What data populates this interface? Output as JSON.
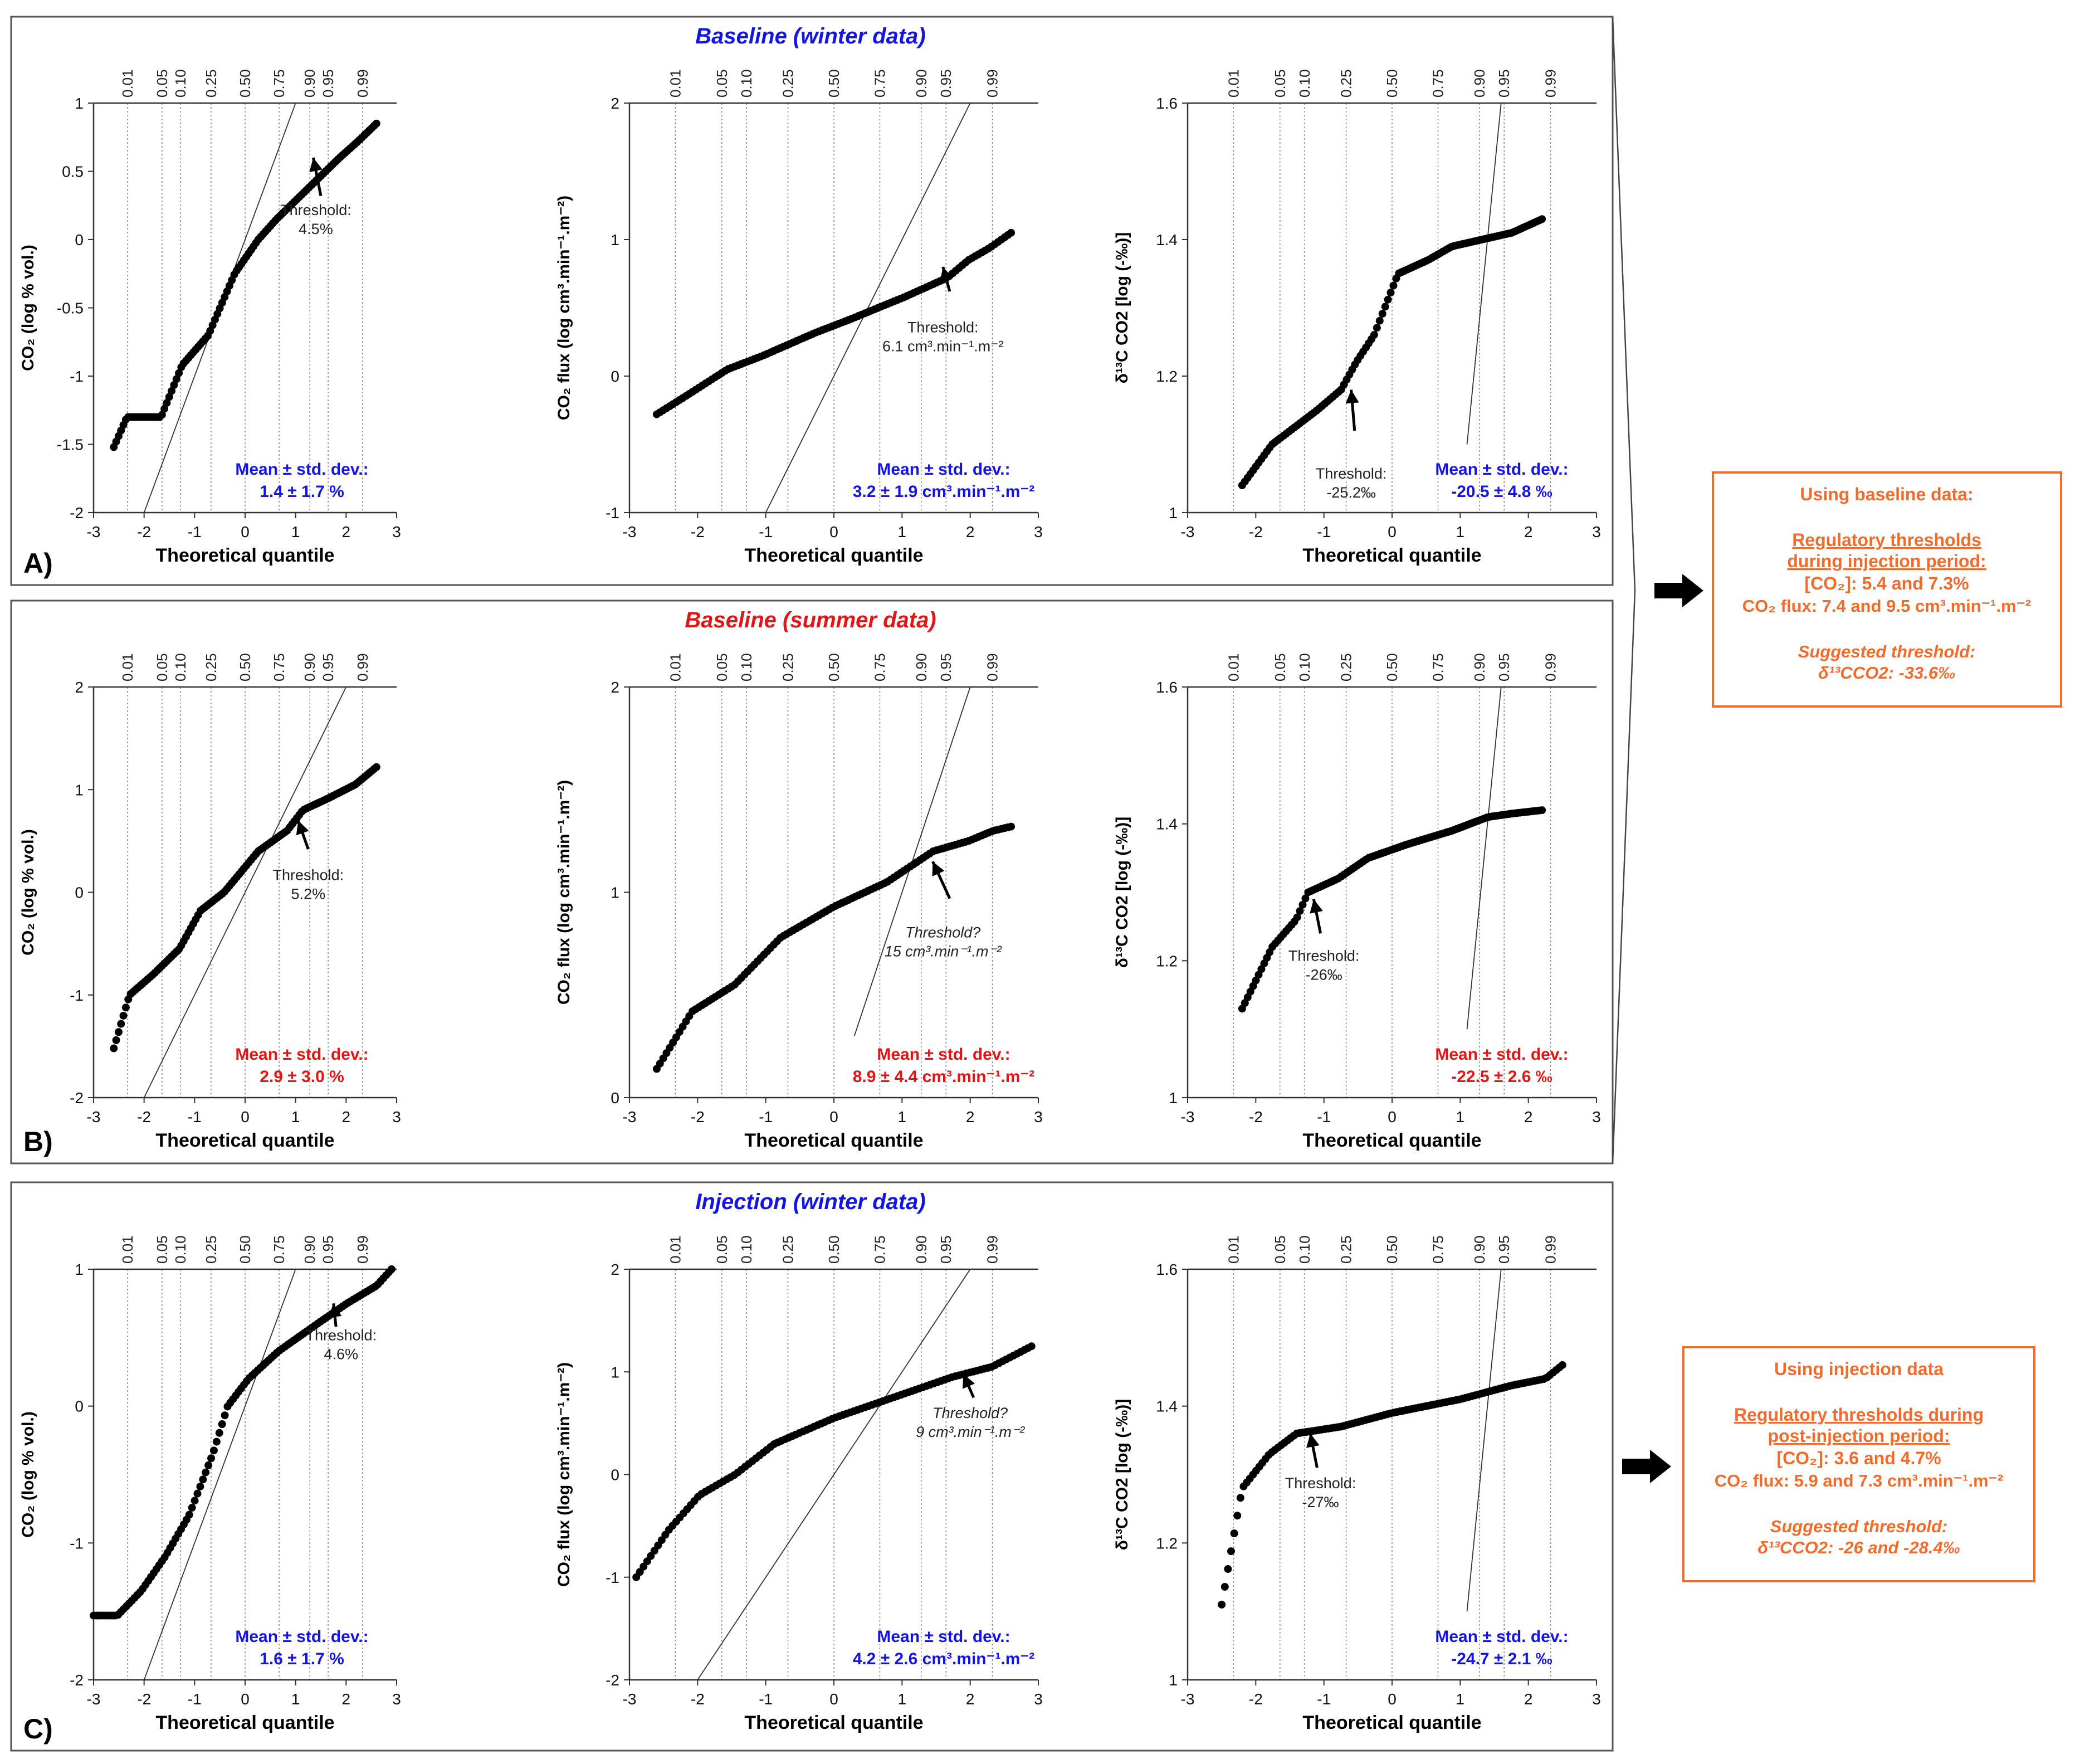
{
  "figure": {
    "x_label": "Theoretical quantile",
    "prob_ticks": [
      "0.01",
      "0.05",
      "0.10",
      "0.25",
      "0.50",
      "0.75",
      "0.90",
      "0.95",
      "0.99"
    ],
    "prob_quantiles": [
      -2.326,
      -1.645,
      -1.282,
      -0.674,
      0,
      0.674,
      1.282,
      1.645,
      2.326
    ],
    "colors": {
      "winter": "#1414e6",
      "summer": "#e61414",
      "orange": "#f26b2a",
      "frame": "#555555",
      "points": "#000000"
    }
  },
  "rows": [
    {
      "id": "A",
      "row_label": "A)",
      "title": "Baseline (winter data)",
      "color": "winter",
      "panels": [
        {
          "ylabel": "CO₂ (log % vol.)",
          "ylim": [
            -2,
            1
          ],
          "yticks": [
            "-2",
            "-1.5",
            "-1",
            "-0.5",
            "0",
            "0.5",
            "1"
          ],
          "ytick_vals": [
            -2,
            -1.5,
            -1,
            -0.5,
            0,
            0.5,
            1
          ],
          "xlim": [
            -3,
            3
          ],
          "ref_line": [
            [
              -2,
              -2
            ],
            [
              1,
              1
            ]
          ],
          "mean_label": "Mean ± std. dev.:",
          "mean_value": "1.4 ± 1.7 %",
          "threshold": {
            "lines": [
              "Threshold:",
              "4.5%"
            ],
            "tip": [
              1.35,
              0.6
            ],
            "tail": [
              1.5,
              0.32
            ],
            "text_at": [
              1.4,
              0.18
            ]
          },
          "points": {
            "q0": -2.6,
            "q1": 2.6,
            "anchors": [
              [
                0,
                -1.52
              ],
              [
                0.05,
                -1.3
              ],
              [
                0.18,
                -1.3
              ],
              [
                0.26,
                -0.92
              ],
              [
                0.36,
                -0.7
              ],
              [
                0.46,
                -0.25
              ],
              [
                0.55,
                0.0
              ],
              [
                0.62,
                0.15
              ],
              [
                0.78,
                0.45
              ],
              [
                0.86,
                0.6
              ],
              [
                0.93,
                0.72
              ],
              [
                1,
                0.85
              ]
            ]
          }
        },
        {
          "ylabel": "CO₂ flux (log cm³.min⁻¹.m⁻²)",
          "ylim": [
            -1,
            2
          ],
          "yticks": [
            "-1",
            "0",
            "1",
            "2"
          ],
          "ytick_vals": [
            -1,
            0,
            1,
            2
          ],
          "xlim": [
            -3,
            3
          ],
          "ref_line": [
            [
              -1,
              -1
            ],
            [
              2,
              2
            ]
          ],
          "mean_label": "Mean ± std. dev.:",
          "mean_value": "3.2 ± 1.9 cm³.min⁻¹.m⁻²",
          "threshold": {
            "lines": [
              "Threshold:",
              "6.1 cm³.min⁻¹.m⁻²"
            ],
            "tip": [
              1.6,
              0.8
            ],
            "tail": [
              1.7,
              0.62
            ],
            "text_at": [
              1.6,
              0.32
            ]
          },
          "points": {
            "q0": -2.6,
            "q1": 2.6,
            "anchors": [
              [
                0,
                -0.28
              ],
              [
                0.08,
                -0.15
              ],
              [
                0.2,
                0.05
              ],
              [
                0.3,
                0.15
              ],
              [
                0.45,
                0.32
              ],
              [
                0.55,
                0.42
              ],
              [
                0.7,
                0.58
              ],
              [
                0.82,
                0.72
              ],
              [
                0.88,
                0.85
              ],
              [
                0.94,
                0.94
              ],
              [
                1,
                1.05
              ]
            ]
          }
        },
        {
          "ylabel": "δ¹³C CO2 [log (-‰)]",
          "ylim": [
            1,
            1.6
          ],
          "yticks": [
            "1",
            "1.2",
            "1.4",
            "1.6"
          ],
          "ytick_vals": [
            1,
            1.2,
            1.4,
            1.6
          ],
          "xlim": [
            -3,
            3
          ],
          "ref_line": [
            [
              1.1,
              1.1
            ],
            [
              1.6,
              1.6
            ]
          ],
          "mean_label": "Mean ± std. dev.:",
          "mean_value": "-20.5 ± 4.8 ‰",
          "threshold": {
            "lines": [
              "Threshold:",
              "-25.2‰"
            ],
            "tip": [
              -0.6,
              1.18
            ],
            "tail": [
              -0.55,
              1.12
            ],
            "text_at": [
              -0.6,
              1.05
            ]
          },
          "points": {
            "q0": -2.2,
            "q1": 2.2,
            "anchors": [
              [
                0,
                1.04
              ],
              [
                0.1,
                1.1
              ],
              [
                0.25,
                1.15
              ],
              [
                0.33,
                1.18
              ],
              [
                0.38,
                1.22
              ],
              [
                0.44,
                1.26
              ],
              [
                0.52,
                1.35
              ],
              [
                0.62,
                1.37
              ],
              [
                0.7,
                1.39
              ],
              [
                0.8,
                1.4
              ],
              [
                0.9,
                1.41
              ],
              [
                1,
                1.43
              ]
            ]
          }
        }
      ]
    },
    {
      "id": "B",
      "row_label": "B)",
      "title": "Baseline (summer data)",
      "color": "summer",
      "panels": [
        {
          "ylabel": "CO₂ (log % vol.)",
          "ylim": [
            -2,
            2
          ],
          "yticks": [
            "-2",
            "-1",
            "0",
            "1",
            "2"
          ],
          "ytick_vals": [
            -2,
            -1,
            0,
            1,
            2
          ],
          "xlim": [
            -3,
            3
          ],
          "ref_line": [
            [
              -2,
              -2
            ],
            [
              2,
              2
            ]
          ],
          "mean_label": "Mean ± std. dev.:",
          "mean_value": "2.9 ± 3.0 %",
          "threshold": {
            "lines": [
              "Threshold:",
              "5.2%"
            ],
            "tip": [
              1.05,
              0.7
            ],
            "tail": [
              1.25,
              0.42
            ],
            "text_at": [
              1.25,
              0.12
            ]
          },
          "points": {
            "q0": -2.6,
            "q1": 2.6,
            "anchors": [
              [
                0,
                -1.52
              ],
              [
                0.06,
                -1.0
              ],
              [
                0.15,
                -0.8
              ],
              [
                0.25,
                -0.55
              ],
              [
                0.33,
                -0.18
              ],
              [
                0.42,
                0.0
              ],
              [
                0.55,
                0.4
              ],
              [
                0.66,
                0.6
              ],
              [
                0.72,
                0.8
              ],
              [
                0.82,
                0.92
              ],
              [
                0.92,
                1.05
              ],
              [
                1,
                1.22
              ]
            ]
          }
        },
        {
          "ylabel": "CO₂ flux (log cm³.min⁻¹.m⁻²)",
          "ylim": [
            0,
            2
          ],
          "yticks": [
            "0",
            "1",
            "2"
          ],
          "ytick_vals": [
            0,
            1,
            2
          ],
          "xlim": [
            -3,
            3
          ],
          "ref_line": [
            [
              0.3,
              0.3
            ],
            [
              2,
              2
            ]
          ],
          "mean_label": "Mean ± std. dev.:",
          "mean_value": "8.9 ± 4.4 cm³.min⁻¹.m⁻²",
          "threshold": {
            "lines": [
              "Threshold?",
              "15 cm³.min⁻¹.m⁻²"
            ],
            "tip": [
              1.45,
              1.15
            ],
            "tail": [
              1.7,
              0.97
            ],
            "text_at": [
              1.6,
              0.78
            ],
            "italic": true
          },
          "points": {
            "q0": -2.6,
            "q1": 2.6,
            "anchors": [
              [
                0,
                0.14
              ],
              [
                0.1,
                0.42
              ],
              [
                0.22,
                0.55
              ],
              [
                0.35,
                0.78
              ],
              [
                0.5,
                0.93
              ],
              [
                0.65,
                1.05
              ],
              [
                0.78,
                1.2
              ],
              [
                0.88,
                1.25
              ],
              [
                0.95,
                1.3
              ],
              [
                1,
                1.32
              ]
            ]
          }
        },
        {
          "ylabel": "δ¹³C CO2 [log (-‰)]",
          "ylim": [
            1,
            1.6
          ],
          "yticks": [
            "1",
            "1.2",
            "1.4",
            "1.6"
          ],
          "ytick_vals": [
            1,
            1.2,
            1.4,
            1.6
          ],
          "xlim": [
            -3,
            3
          ],
          "ref_line": [
            [
              1.1,
              1.1
            ],
            [
              1.6,
              1.6
            ]
          ],
          "mean_label": "Mean ± std. dev.:",
          "mean_value": "-22.5 ± 2.6 ‰",
          "threshold": {
            "lines": [
              "Threshold:",
              "-26‰"
            ],
            "tip": [
              -1.15,
              1.29
            ],
            "tail": [
              -1.05,
              1.24
            ],
            "text_at": [
              -1.0,
              1.2
            ]
          },
          "points": {
            "q0": -2.2,
            "q1": 2.2,
            "anchors": [
              [
                0,
                1.13
              ],
              [
                0.1,
                1.22
              ],
              [
                0.18,
                1.26
              ],
              [
                0.22,
                1.3
              ],
              [
                0.32,
                1.32
              ],
              [
                0.42,
                1.35
              ],
              [
                0.55,
                1.37
              ],
              [
                0.7,
                1.39
              ],
              [
                0.82,
                1.41
              ],
              [
                0.9,
                1.415
              ],
              [
                1,
                1.42
              ]
            ]
          }
        }
      ]
    },
    {
      "id": "C",
      "row_label": "C)",
      "title": "Injection (winter data)",
      "color": "winter",
      "panels": [
        {
          "ylabel": "CO₂ (log % vol.)",
          "ylim": [
            -2,
            1
          ],
          "yticks": [
            "-2",
            "-1",
            "0",
            "1"
          ],
          "ytick_vals": [
            -2,
            -1,
            0,
            1
          ],
          "xlim": [
            -3,
            3
          ],
          "ref_line": [
            [
              -2,
              -2
            ],
            [
              1,
              1
            ]
          ],
          "mean_label": "Mean ± std. dev.:",
          "mean_value": "1.6 ± 1.7 %",
          "threshold": {
            "lines": [
              "Threshold:",
              "4.6%"
            ],
            "tip": [
              1.75,
              0.75
            ],
            "tail": [
              1.8,
              0.58
            ],
            "text_at": [
              1.9,
              0.48
            ]
          },
          "points": {
            "q0": -3.0,
            "q1": 2.9,
            "anchors": [
              [
                0,
                -1.53
              ],
              [
                0.08,
                -1.53
              ],
              [
                0.16,
                -1.35
              ],
              [
                0.24,
                -1.1
              ],
              [
                0.32,
                -0.8
              ],
              [
                0.4,
                -0.35
              ],
              [
                0.45,
                0.0
              ],
              [
                0.52,
                0.2
              ],
              [
                0.62,
                0.4
              ],
              [
                0.75,
                0.6
              ],
              [
                0.85,
                0.75
              ],
              [
                0.95,
                0.88
              ],
              [
                1,
                1.0
              ]
            ]
          }
        },
        {
          "ylabel": "CO₂ flux (log cm³.min⁻¹.m⁻²)",
          "ylim": [
            -2,
            2
          ],
          "yticks": [
            "-2",
            "-1",
            "0",
            "1",
            "2"
          ],
          "ytick_vals": [
            -2,
            -1,
            0,
            1,
            2
          ],
          "xlim": [
            -3,
            3
          ],
          "ref_line": [
            [
              -2,
              -2
            ],
            [
              2,
              2
            ]
          ],
          "mean_label": "Mean ± std. dev.:",
          "mean_value": "4.2 ± 2.6 cm³.min⁻¹.m⁻²",
          "threshold": {
            "lines": [
              "Threshold?",
              "9 cm³.min⁻¹.m⁻²"
            ],
            "tip": [
              1.9,
              0.98
            ],
            "tail": [
              2.05,
              0.75
            ],
            "text_at": [
              2.0,
              0.55
            ],
            "italic": true
          },
          "points": {
            "q0": -2.9,
            "q1": 2.9,
            "anchors": [
              [
                0,
                -1.0
              ],
              [
                0.08,
                -0.55
              ],
              [
                0.16,
                -0.2
              ],
              [
                0.25,
                0.0
              ],
              [
                0.35,
                0.3
              ],
              [
                0.5,
                0.55
              ],
              [
                0.65,
                0.75
              ],
              [
                0.8,
                0.95
              ],
              [
                0.9,
                1.05
              ],
              [
                1,
                1.25
              ]
            ]
          }
        },
        {
          "ylabel": "δ¹³C CO2 [log (-‰)]",
          "ylim": [
            1,
            1.6
          ],
          "yticks": [
            "1",
            "1.2",
            "1.4",
            "1.6"
          ],
          "ytick_vals": [
            1,
            1.2,
            1.4,
            1.6
          ],
          "xlim": [
            -3,
            3
          ],
          "ref_line": [
            [
              1.1,
              1.1
            ],
            [
              1.6,
              1.6
            ]
          ],
          "mean_label": "Mean ± std. dev.:",
          "mean_value": "-24.7 ± 2.1 ‰",
          "threshold": {
            "lines": [
              "Threshold:",
              "-27‰"
            ],
            "tip": [
              -1.2,
              1.36
            ],
            "tail": [
              -1.1,
              1.31
            ],
            "text_at": [
              -1.05,
              1.28
            ]
          },
          "points": {
            "q0": -2.5,
            "q1": 2.5,
            "anchors": [
              [
                0,
                1.11
              ],
              [
                0.06,
                1.28
              ],
              [
                0.14,
                1.33
              ],
              [
                0.22,
                1.36
              ],
              [
                0.35,
                1.37
              ],
              [
                0.5,
                1.39
              ],
              [
                0.7,
                1.41
              ],
              [
                0.85,
                1.43
              ],
              [
                0.95,
                1.44
              ],
              [
                1,
                1.46
              ]
            ]
          }
        }
      ]
    }
  ],
  "side_boxes": [
    {
      "id": "baseline",
      "heading": "Using baseline data:",
      "reg_title_1": "Regulatory thresholds",
      "reg_title_2": "during injection period:",
      "co2_line": "[CO₂]: 5.4 and 7.3%",
      "flux_line": "CO₂ flux: 7.4 and 9.5 cm³.min⁻¹.m⁻²",
      "suggested_label": "Suggested threshold:",
      "suggested_value": "δ¹³CCO2: -33.6‰"
    },
    {
      "id": "injection",
      "heading": "Using injection data",
      "reg_title_1": "Regulatory thresholds during",
      "reg_title_2": "post-injection period:",
      "co2_line": "[CO₂]: 3.6 and 4.7%",
      "flux_line": "CO₂ flux: 5.9 and 7.3 cm³.min⁻¹.m⁻²",
      "suggested_label": "Suggested threshold:",
      "suggested_value": "δ¹³CCO2: -26 and -28.4‰"
    }
  ]
}
